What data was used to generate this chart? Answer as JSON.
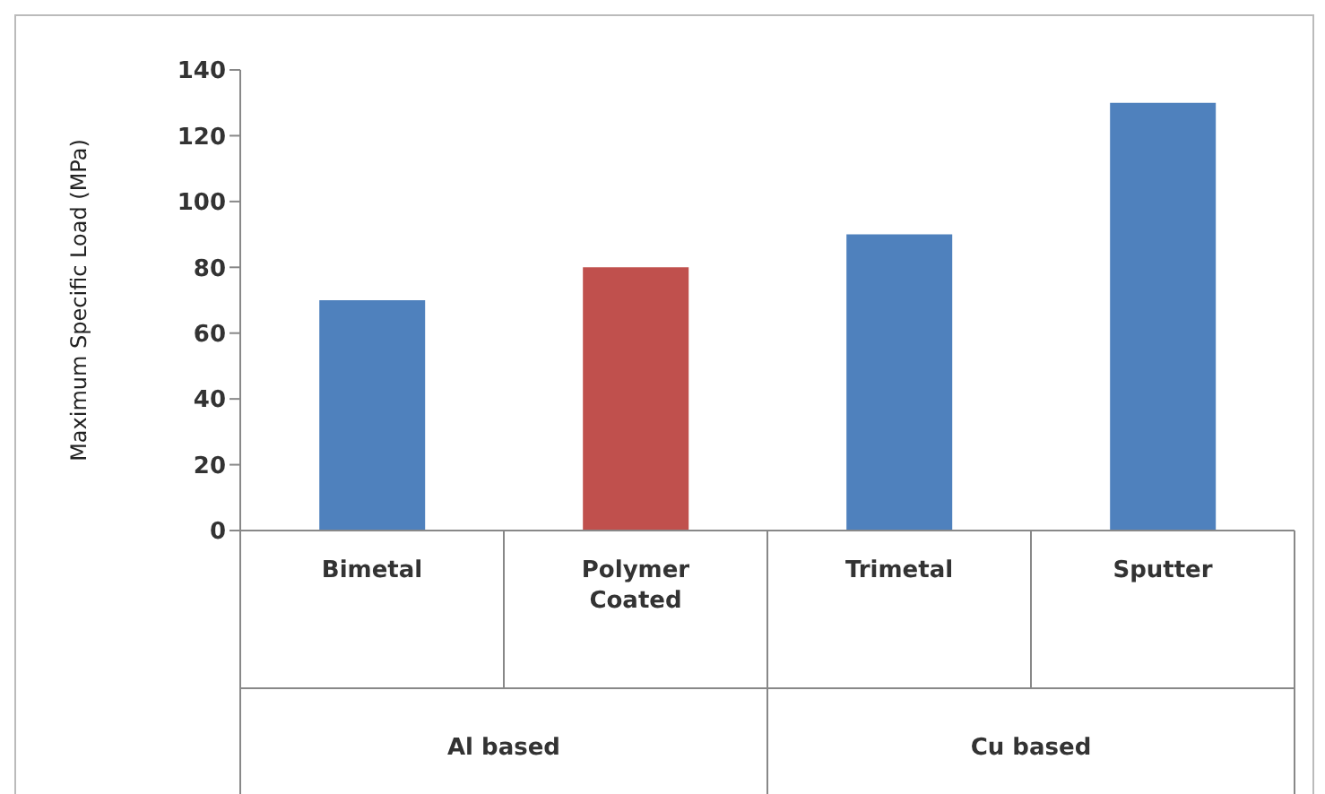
{
  "chart_data": {
    "type": "bar",
    "ylabel": "Maximum Specific Load (MPa)",
    "categories": [
      "Bimetal",
      "Polymer Coated",
      "Trimetal",
      "Sputter"
    ],
    "values": [
      70,
      80,
      90,
      130
    ],
    "colors": [
      "#4f81bd",
      "#c0504d",
      "#4f81bd",
      "#4f81bd"
    ],
    "ylim": [
      0,
      140
    ],
    "yticks": [
      0,
      20,
      40,
      60,
      80,
      100,
      120,
      140
    ],
    "annotations": [
      "Al based",
      "Cu based"
    ],
    "grid": false,
    "legend": false
  }
}
